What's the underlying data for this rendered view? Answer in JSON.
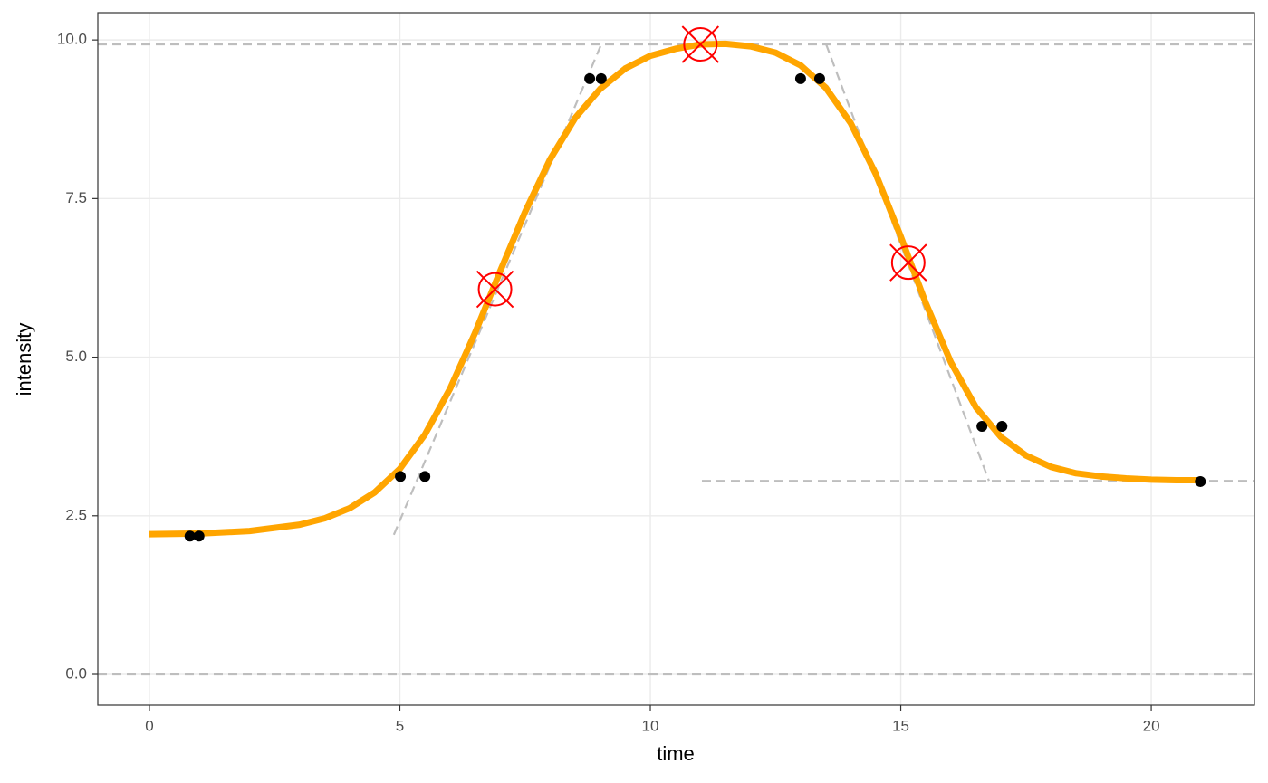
{
  "chart_data": {
    "type": "scatter",
    "xlabel": "time",
    "ylabel": "intensity",
    "xlim": [
      -1.03,
      22.06
    ],
    "ylim": [
      -0.485,
      10.43
    ],
    "xticks": [
      0,
      5,
      10,
      15,
      20
    ],
    "yticks": [
      {
        "value": 0,
        "label": "0.0"
      },
      2.5,
      {
        "value": 5,
        "label": "5.0"
      },
      7.5,
      {
        "value": 10,
        "label": "10.0"
      }
    ],
    "grid": true,
    "points": {
      "color": "#000000",
      "x": [
        0.81,
        0.99,
        5.01,
        5.5,
        8.79,
        9.02,
        13.0,
        13.38,
        16.62,
        17.02,
        20.98
      ],
      "y": [
        2.18,
        2.18,
        3.12,
        3.12,
        9.39,
        9.39,
        9.39,
        9.39,
        3.91,
        3.91,
        3.04
      ]
    },
    "curve": {
      "color": "#ffa500",
      "x": [
        0,
        1,
        2,
        3,
        3.5,
        4,
        4.5,
        5,
        5.5,
        6,
        6.5,
        7,
        7.5,
        8,
        8.5,
        9,
        9.5,
        10,
        10.5,
        11,
        11.5,
        12,
        12.5,
        13,
        13.5,
        14,
        14.5,
        15,
        15.5,
        16,
        16.5,
        17,
        17.5,
        18,
        18.5,
        19,
        19.5,
        20,
        20.5,
        21
      ],
      "y": [
        2.21,
        2.22,
        2.26,
        2.36,
        2.46,
        2.62,
        2.87,
        3.24,
        3.78,
        4.5,
        5.38,
        6.35,
        7.29,
        8.12,
        8.77,
        9.23,
        9.55,
        9.75,
        9.86,
        9.93,
        9.94,
        9.9,
        9.8,
        9.6,
        9.25,
        8.69,
        7.89,
        6.9,
        5.85,
        4.92,
        4.21,
        3.74,
        3.45,
        3.27,
        3.17,
        3.12,
        3.09,
        3.07,
        3.06,
        3.06
      ]
    },
    "key_points": {
      "color": "#ff0000",
      "x": [
        6.9,
        11.0,
        15.15
      ],
      "y": [
        6.07,
        9.93,
        6.49
      ]
    },
    "ref_color": "#bebebe",
    "ref_hlines": [
      0,
      9.93
    ],
    "ref_segments": [
      {
        "x": [
          4.88,
          9.02
        ],
        "y": [
          2.2,
          9.93
        ]
      },
      {
        "x": [
          13.51,
          16.76
        ],
        "y": [
          9.93,
          3.05
        ]
      },
      {
        "x": [
          11.03,
          22.06
        ],
        "y": [
          3.05,
          3.05
        ]
      }
    ]
  }
}
